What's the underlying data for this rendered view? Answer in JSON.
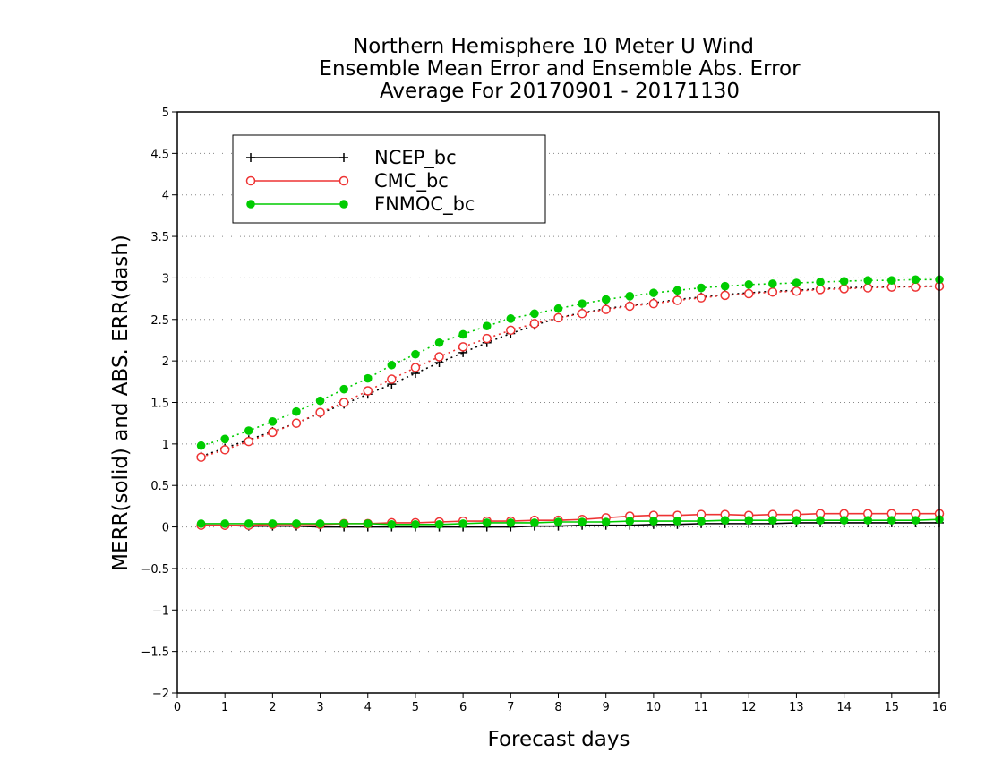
{
  "chart_data": {
    "type": "line",
    "title_lines": [
      "Northern Hemisphere 10 Meter U Wind",
      "Ensemble Mean Error and Ensemble Abs. Error",
      "Average For 20170901 - 20171130"
    ],
    "xlabel": "Forecast days",
    "ylabel": "MERR(solid) and ABS. ERR(dash)",
    "xlim": [
      0,
      16
    ],
    "ylim": [
      -2,
      5
    ],
    "x_ticks": [
      "0",
      "1",
      "2",
      "3",
      "4",
      "5",
      "6",
      "7",
      "8",
      "9",
      "10",
      "11",
      "12",
      "13",
      "14",
      "15",
      "16"
    ],
    "y_ticks": [
      "−2",
      "−1.5",
      "−1",
      "−0.5",
      "0",
      "0.5",
      "1",
      "1.5",
      "2",
      "2.5",
      "3",
      "3.5",
      "4",
      "4.5",
      "5"
    ],
    "grid": "dotted horizontal",
    "legend_position": "top-left",
    "x": [
      0.5,
      1,
      1.5,
      2,
      2.5,
      3,
      3.5,
      4,
      4.5,
      5,
      5.5,
      6,
      6.5,
      7,
      7.5,
      8,
      8.5,
      9,
      9.5,
      10,
      10.5,
      11,
      11.5,
      12,
      12.5,
      13,
      13.5,
      14,
      14.5,
      15,
      15.5,
      16
    ],
    "series": [
      {
        "name": "NCEP_bc",
        "color": "#000000",
        "marker": "plus",
        "mean_error": [
          0.02,
          0.02,
          0.01,
          0.01,
          0.01,
          0.0,
          0.0,
          0.0,
          0.0,
          0.0,
          0.0,
          0.0,
          0.0,
          0.0,
          0.01,
          0.01,
          0.02,
          0.02,
          0.02,
          0.03,
          0.03,
          0.04,
          0.04,
          0.04,
          0.04,
          0.05,
          0.05,
          0.05,
          0.05,
          0.05,
          0.05,
          0.05
        ],
        "abs_error": [
          0.85,
          0.95,
          1.05,
          1.15,
          1.25,
          1.37,
          1.48,
          1.6,
          1.72,
          1.85,
          1.98,
          2.1,
          2.22,
          2.33,
          2.43,
          2.52,
          2.58,
          2.63,
          2.67,
          2.7,
          2.74,
          2.77,
          2.8,
          2.82,
          2.84,
          2.85,
          2.87,
          2.88,
          2.89,
          2.89,
          2.9,
          2.9
        ]
      },
      {
        "name": "CMC_bc",
        "color": "#ee3333",
        "marker": "open-circle",
        "mean_error": [
          0.02,
          0.02,
          0.02,
          0.03,
          0.03,
          0.03,
          0.04,
          0.04,
          0.05,
          0.05,
          0.06,
          0.07,
          0.07,
          0.07,
          0.08,
          0.08,
          0.09,
          0.11,
          0.13,
          0.14,
          0.14,
          0.15,
          0.15,
          0.14,
          0.15,
          0.15,
          0.16,
          0.16,
          0.16,
          0.16,
          0.16,
          0.16
        ],
        "abs_error": [
          0.84,
          0.93,
          1.03,
          1.14,
          1.25,
          1.38,
          1.5,
          1.64,
          1.78,
          1.92,
          2.05,
          2.17,
          2.27,
          2.37,
          2.45,
          2.52,
          2.57,
          2.62,
          2.66,
          2.69,
          2.73,
          2.76,
          2.79,
          2.81,
          2.83,
          2.84,
          2.86,
          2.87,
          2.88,
          2.89,
          2.89,
          2.9
        ]
      },
      {
        "name": "FNMOC_bc",
        "color": "#00cc00",
        "marker": "filled-circle",
        "mean_error": [
          0.04,
          0.04,
          0.04,
          0.04,
          0.04,
          0.04,
          0.04,
          0.04,
          0.03,
          0.03,
          0.03,
          0.04,
          0.05,
          0.05,
          0.05,
          0.06,
          0.06,
          0.06,
          0.07,
          0.07,
          0.07,
          0.07,
          0.08,
          0.08,
          0.08,
          0.08,
          0.08,
          0.08,
          0.08,
          0.08,
          0.08,
          0.09
        ],
        "abs_error": [
          0.98,
          1.06,
          1.16,
          1.27,
          1.39,
          1.52,
          1.66,
          1.79,
          1.95,
          2.08,
          2.22,
          2.32,
          2.42,
          2.51,
          2.57,
          2.63,
          2.69,
          2.74,
          2.78,
          2.82,
          2.85,
          2.88,
          2.9,
          2.92,
          2.93,
          2.94,
          2.95,
          2.96,
          2.97,
          2.97,
          2.98,
          2.98
        ]
      }
    ]
  }
}
